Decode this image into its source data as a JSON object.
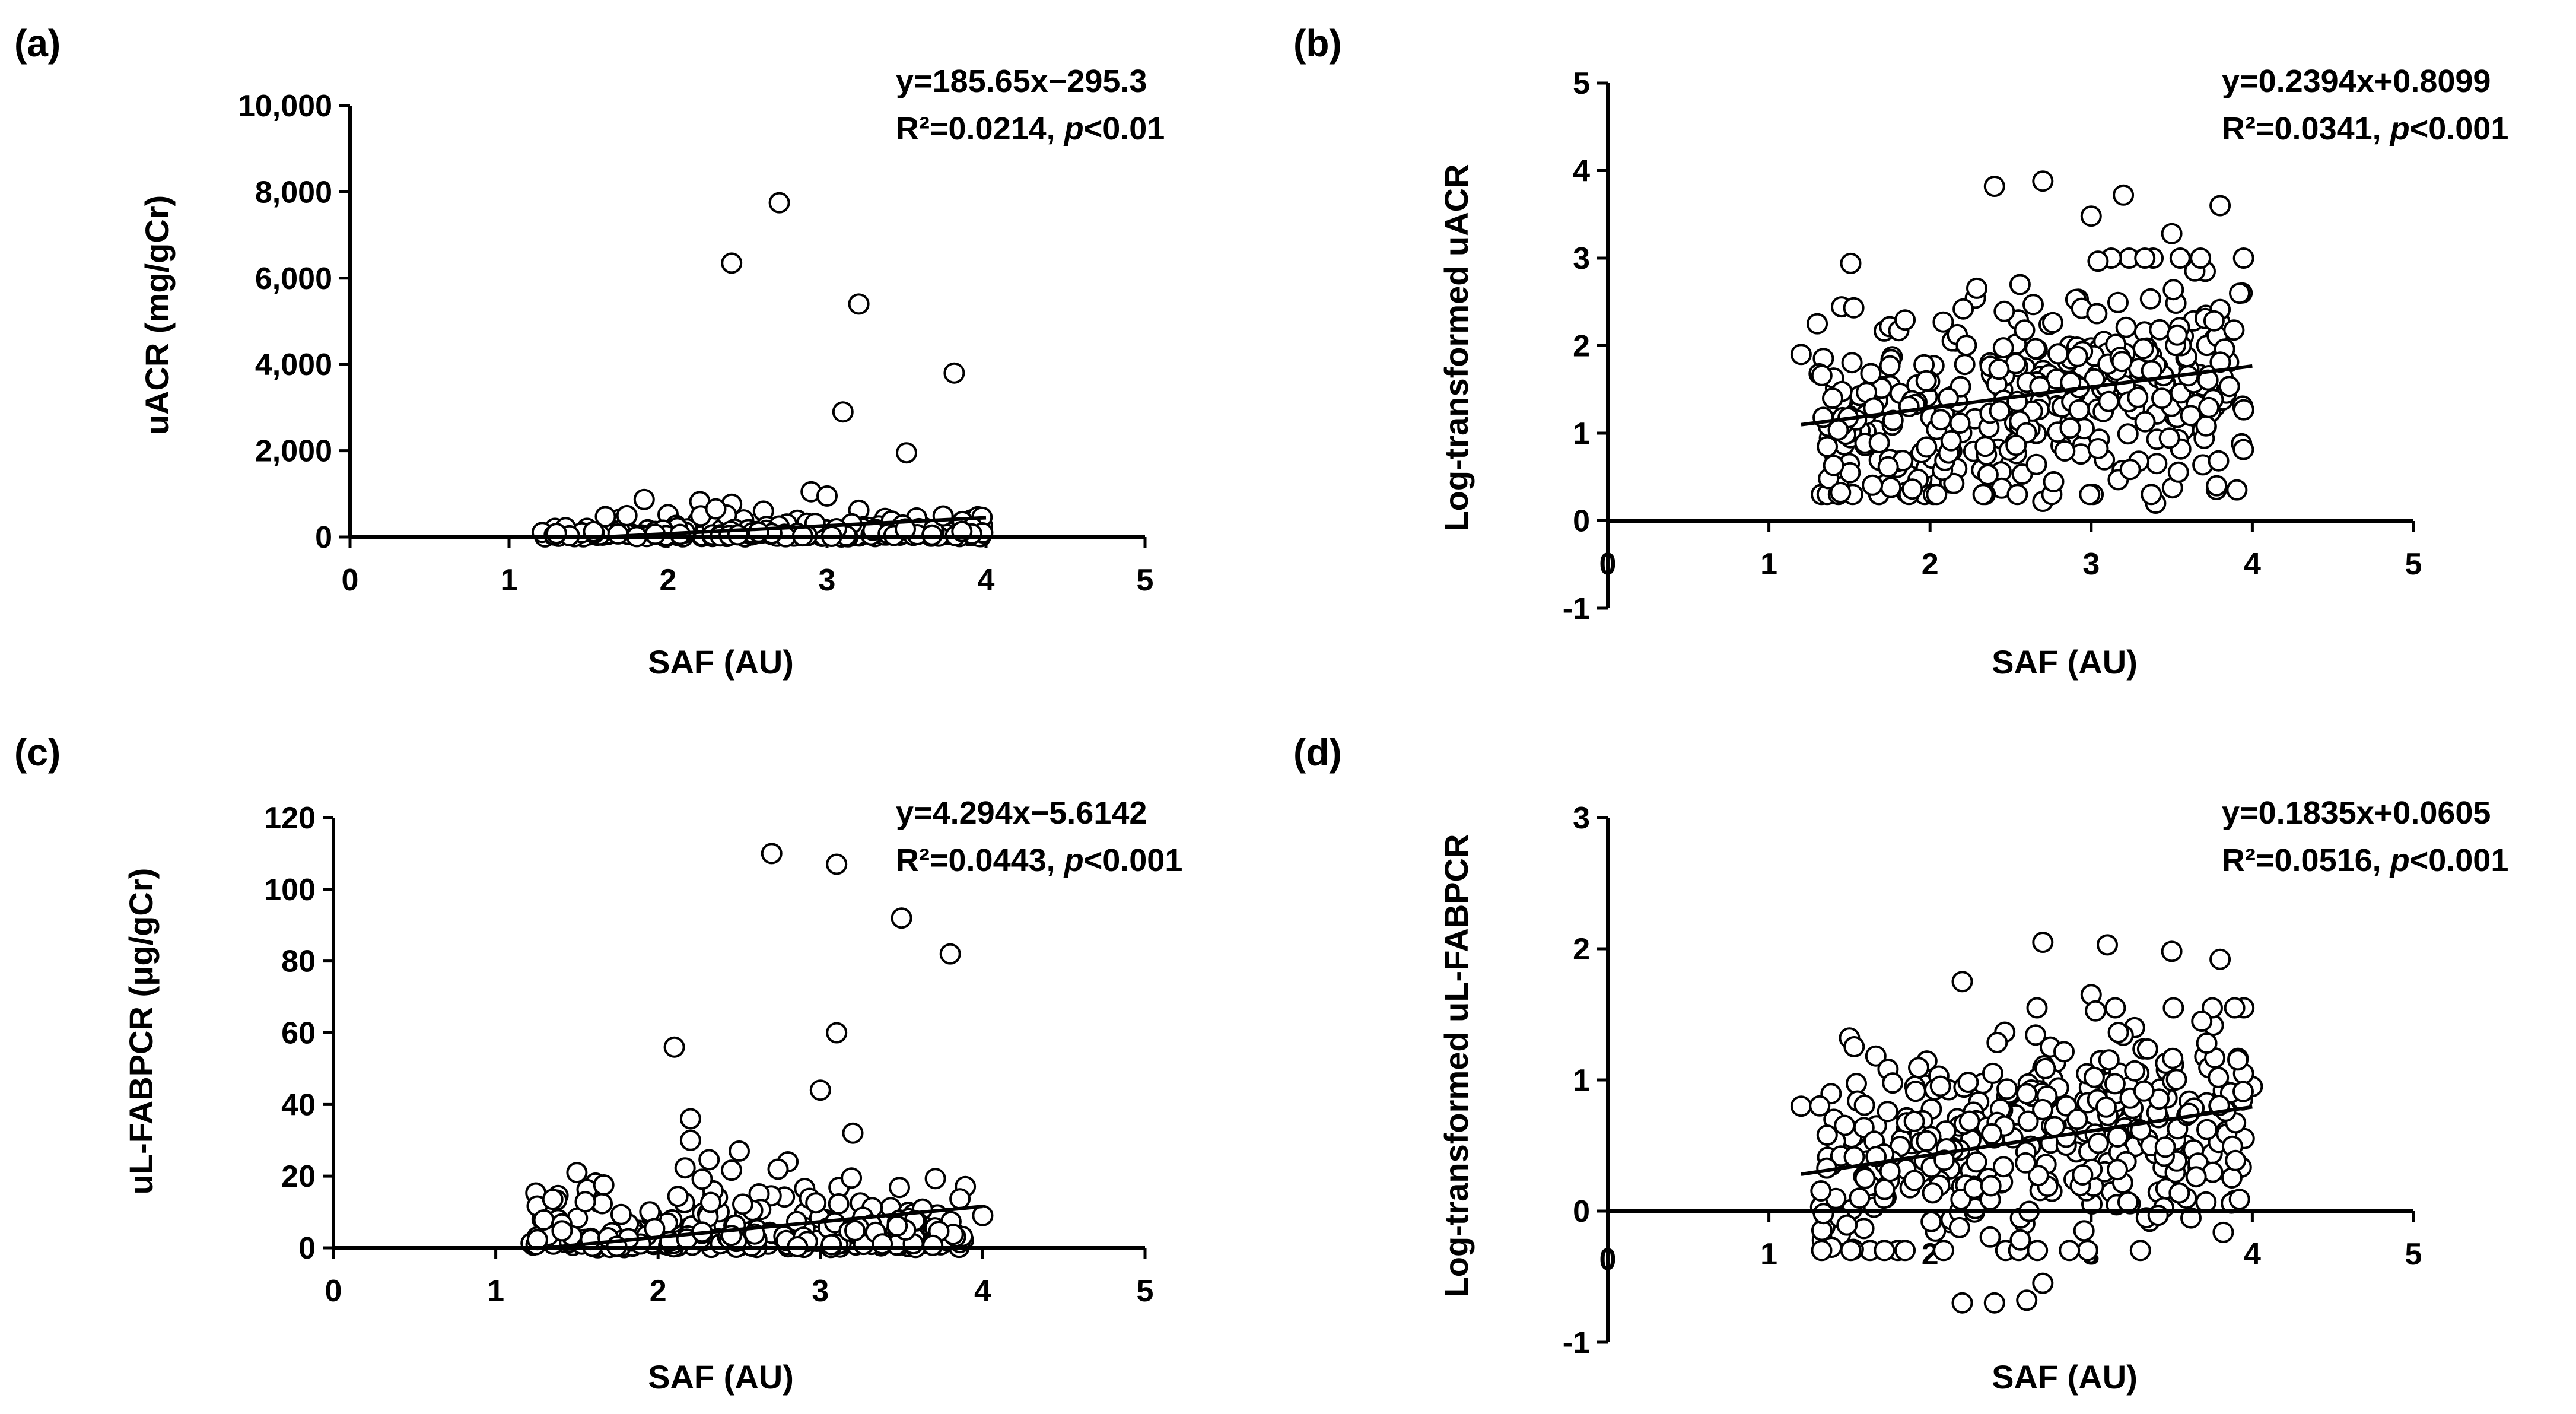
{
  "chart_data": [
    {
      "id": "a",
      "type": "scatter",
      "label": "(a)",
      "xlabel": "SAF (AU)",
      "ylabel": "uACR (mg/gCr)",
      "xlim": [
        0,
        5
      ],
      "ylim": [
        0,
        10000
      ],
      "xticks": [
        0,
        1,
        2,
        3,
        4,
        5
      ],
      "xtick_labels": [
        "0",
        "1",
        "2",
        "3",
        "4",
        "5"
      ],
      "yticks": [
        0,
        2000,
        4000,
        6000,
        8000,
        10000
      ],
      "ytick_labels": [
        "0",
        "2,000",
        "4,000",
        "6,000",
        "8,000",
        "10,000"
      ],
      "equation": "y=185.65x−295.3",
      "r2_prefix": "R²=0.0214, ",
      "p_symbol": "p",
      "p_suffix": "<0.01",
      "fit": {
        "slope": 185.65,
        "intercept": -295.3,
        "x": [
          1.6,
          4.0
        ]
      },
      "highlights": [
        [
          2.4,
          6350
        ],
        [
          2.7,
          7750
        ],
        [
          3.2,
          5400
        ],
        [
          3.1,
          2900
        ],
        [
          3.5,
          1950
        ],
        [
          3.8,
          3800
        ],
        [
          2.9,
          1050
        ],
        [
          3.0,
          950
        ],
        [
          1.85,
          870
        ],
        [
          2.2,
          820
        ],
        [
          2.4,
          760
        ],
        [
          3.2,
          620
        ],
        [
          2.6,
          600
        ],
        [
          1.7,
          420
        ],
        [
          2.0,
          520
        ]
      ],
      "seed": 11,
      "n_random": 200,
      "random_spec": {
        "xmin": 1.2,
        "xmax": 4.0,
        "ycap": 800,
        "dist": "exp",
        "scale": 130
      }
    },
    {
      "id": "b",
      "type": "scatter",
      "label": "(b)",
      "xlabel": "SAF (AU)",
      "ylabel": "Log-transformed uACR",
      "xlim": [
        0,
        5
      ],
      "ylim": [
        -1,
        5
      ],
      "xticks": [
        1,
        2,
        3,
        4,
        5
      ],
      "xtick_labels": [
        "1",
        "2",
        "3",
        "4",
        "5"
      ],
      "origin_label": "0",
      "yticks": [
        -1,
        0,
        1,
        2,
        3,
        4,
        5
      ],
      "ytick_labels": [
        "-1",
        "0",
        "1",
        "2",
        "3",
        "4",
        "5"
      ],
      "equation": "y=0.2394x+0.8099",
      "r2_prefix": "R²=0.0341, ",
      "p_symbol": "p",
      "p_suffix": "<0.001",
      "fit": {
        "slope": 0.2394,
        "intercept": 0.8099,
        "x": [
          1.2,
          4.0
        ]
      },
      "highlights": [
        [
          2.4,
          3.82
        ],
        [
          2.7,
          3.88
        ],
        [
          3.0,
          3.48
        ],
        [
          3.2,
          3.72
        ],
        [
          3.5,
          3.28
        ],
        [
          3.8,
          3.6
        ],
        [
          3.4,
          0.2
        ],
        [
          2.7,
          0.22
        ],
        [
          1.2,
          1.9
        ],
        [
          1.3,
          2.25
        ]
      ],
      "seed": 23,
      "n_random": 380,
      "random_spec": {
        "xmin": 1.3,
        "xmax": 3.95,
        "dist": "normal",
        "slope": 0.2394,
        "intercept": 0.8099,
        "sd": 0.62,
        "ymin": 0.3,
        "ymax": 3.0
      }
    },
    {
      "id": "c",
      "type": "scatter",
      "label": "(c)",
      "xlabel": "SAF (AU)",
      "ylabel": "uL-FABPCR (μg/gCr)",
      "xlim": [
        0,
        5
      ],
      "ylim": [
        0,
        120
      ],
      "xticks": [
        0,
        1,
        2,
        3,
        4,
        5
      ],
      "xtick_labels": [
        "0",
        "1",
        "2",
        "3",
        "4",
        "5"
      ],
      "yticks": [
        0,
        20,
        40,
        60,
        80,
        100,
        120
      ],
      "ytick_labels": [
        "0",
        "20",
        "40",
        "60",
        "80",
        "100",
        "120"
      ],
      "equation": "y=4.294x−5.6142",
      "r2_prefix": "R²=0.0443, ",
      "p_symbol": "p",
      "p_suffix": "<0.001",
      "fit": {
        "slope": 4.294,
        "intercept": -5.6142,
        "x": [
          1.3,
          4.0
        ]
      },
      "highlights": [
        [
          2.7,
          110
        ],
        [
          3.1,
          107
        ],
        [
          3.5,
          92
        ],
        [
          3.8,
          82
        ],
        [
          3.1,
          60
        ],
        [
          2.1,
          56
        ],
        [
          3.0,
          44
        ],
        [
          2.2,
          36
        ],
        [
          3.2,
          32
        ],
        [
          2.2,
          30
        ],
        [
          1.5,
          21
        ],
        [
          2.8,
          24
        ],
        [
          2.5,
          27
        ],
        [
          4.0,
          9
        ]
      ],
      "seed": 37,
      "n_random": 260,
      "random_spec": {
        "xmin": 1.2,
        "xmax": 3.9,
        "ycap": 26,
        "dist": "exp",
        "scale": 5.5
      }
    },
    {
      "id": "d",
      "type": "scatter",
      "label": "(d)",
      "xlabel": "SAF (AU)",
      "ylabel": "Log-transformed uL-FABPCR",
      "xlim": [
        0,
        5
      ],
      "ylim": [
        -1,
        3
      ],
      "xticks": [
        1,
        2,
        3,
        4,
        5
      ],
      "xtick_labels": [
        "1",
        "2",
        "3",
        "4",
        "5"
      ],
      "origin_label": "0",
      "yticks": [
        -1,
        0,
        1,
        2,
        3
      ],
      "ytick_labels": [
        "-1",
        "0",
        "1",
        "2",
        "3"
      ],
      "equation": "y=0.1835x+0.0605",
      "r2_prefix": "R²=0.0516, ",
      "p_symbol": "p",
      "p_suffix": "<0.001",
      "fit": {
        "slope": 0.1835,
        "intercept": 0.0605,
        "x": [
          1.2,
          4.0
        ]
      },
      "highlights": [
        [
          2.7,
          2.05
        ],
        [
          3.1,
          2.03
        ],
        [
          3.5,
          1.98
        ],
        [
          3.8,
          1.92
        ],
        [
          2.2,
          1.75
        ],
        [
          3.0,
          1.65
        ],
        [
          1.5,
          1.32
        ],
        [
          2.2,
          -0.7
        ],
        [
          2.4,
          -0.7
        ],
        [
          2.6,
          -0.68
        ],
        [
          2.7,
          -0.55
        ],
        [
          1.2,
          0.8
        ],
        [
          4.0,
          0.95
        ]
      ],
      "seed": 53,
      "n_random": 380,
      "random_spec": {
        "xmin": 1.3,
        "xmax": 3.95,
        "dist": "normal",
        "slope": 0.1835,
        "intercept": 0.0605,
        "sd": 0.42,
        "ymin": -0.3,
        "ymax": 1.55
      }
    }
  ]
}
